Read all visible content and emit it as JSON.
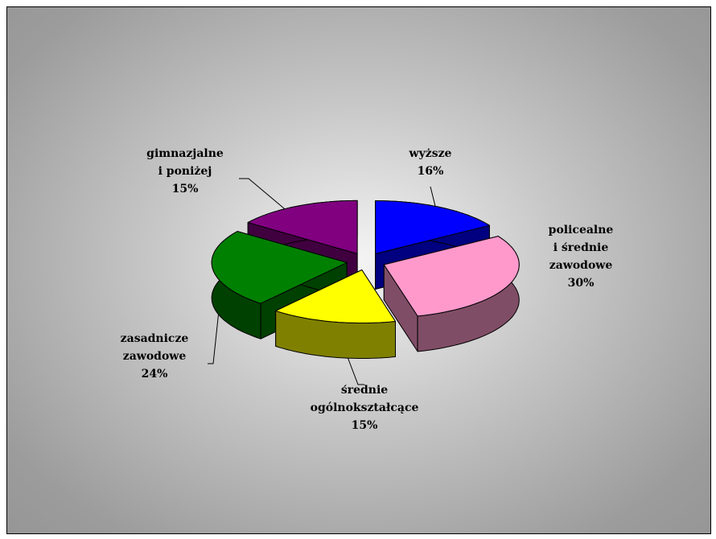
{
  "chart_data": {
    "type": "pie3d",
    "categories": [
      "wyższe",
      "policealne\ni średnie\nzawodowe",
      "średnie\nogólnokształcące",
      "zasadnicze\nzawodowe",
      "gimnazjalne\ni poniżej"
    ],
    "values": [
      16,
      30,
      15,
      24,
      15
    ],
    "value_labels": [
      "16%",
      "30%",
      "15%",
      "24%",
      "15%"
    ],
    "colors": [
      "#0000ff",
      "#ff99cc",
      "#ffff00",
      "#008000",
      "#800080"
    ]
  }
}
